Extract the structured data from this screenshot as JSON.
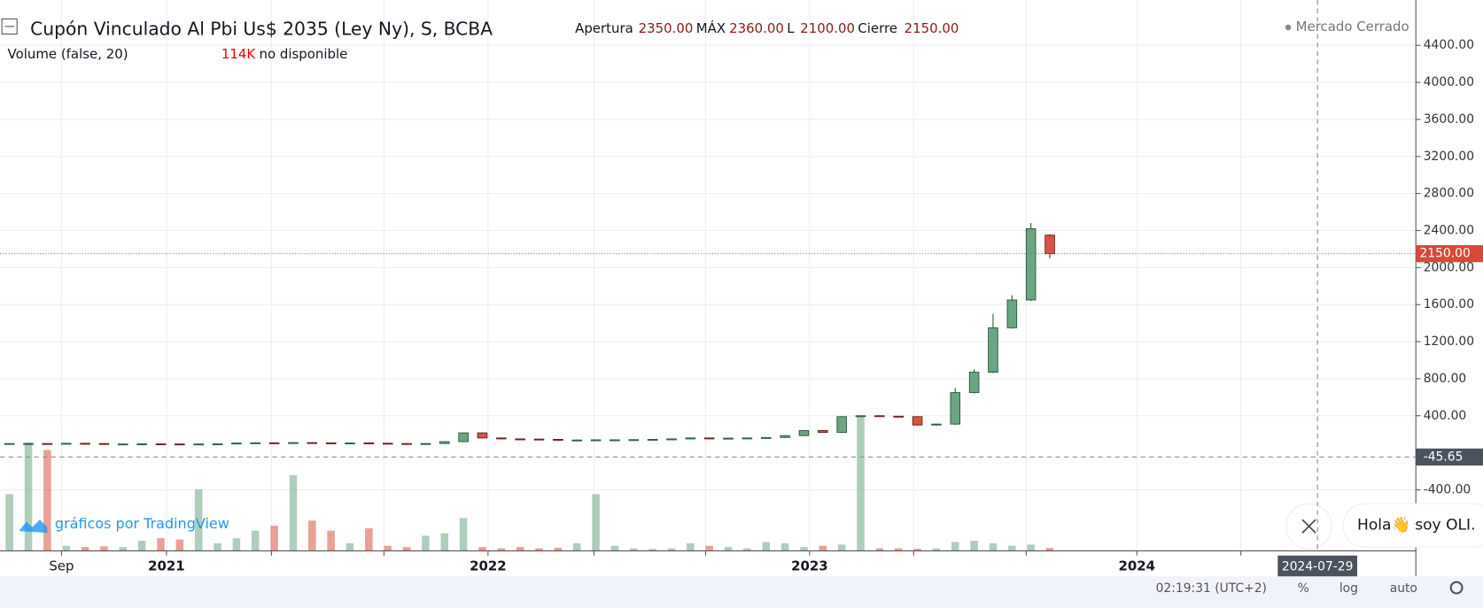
{
  "chart_data": {
    "type": "candlestick",
    "title": "Cupón Vinculado Al Pbi Us$ 2035 (Ley Ny), S, BCBA",
    "header": {
      "open_label": "Apertura",
      "open": "2350.00",
      "high_label": "MÁX",
      "high": "2360.00",
      "low_label": "L",
      "low": "2100.00",
      "close_label": "Cierre",
      "close": "2150.00"
    },
    "status": "Mercado Cerrado",
    "open": [
      95,
      100,
      100,
      98,
      102,
      100,
      95,
      95,
      96,
      95,
      94,
      95,
      96,
      105,
      108,
      106,
      110,
      107,
      104,
      106,
      103,
      100,
      98,
      100,
      120,
      215,
      160,
      150,
      148,
      145,
      135,
      138,
      140,
      140,
      142,
      145,
      150,
      160,
      155,
      158,
      160,
      165,
      185,
      240,
      220,
      390,
      400,
      395,
      390,
      300,
      310,
      650,
      870,
      1350,
      1650,
      2350
    ],
    "high": [
      105,
      105,
      105,
      107,
      107,
      105,
      100,
      101,
      101,
      100,
      100,
      101,
      110,
      113,
      113,
      115,
      115,
      112,
      111,
      111,
      108,
      105,
      105,
      125,
      220,
      220,
      165,
      155,
      153,
      150,
      143,
      145,
      145,
      147,
      150,
      155,
      165,
      165,
      163,
      165,
      170,
      190,
      245,
      245,
      395,
      405,
      405,
      400,
      395,
      315,
      700,
      900,
      1500,
      1700,
      2480,
      2360
    ],
    "low": [
      90,
      95,
      93,
      93,
      95,
      90,
      90,
      90,
      90,
      89,
      89,
      90,
      91,
      100,
      101,
      101,
      102,
      99,
      99,
      98,
      95,
      93,
      93,
      95,
      115,
      155,
      145,
      143,
      140,
      130,
      130,
      133,
      135,
      135,
      137,
      140,
      145,
      150,
      150,
      153,
      155,
      160,
      180,
      215,
      215,
      385,
      390,
      385,
      295,
      295,
      300,
      640,
      860,
      1340,
      1640,
      2100
    ],
    "close": [
      100,
      100,
      98,
      102,
      100,
      95,
      95,
      96,
      95,
      94,
      95,
      96,
      105,
      108,
      106,
      110,
      107,
      104,
      106,
      103,
      100,
      98,
      100,
      120,
      215,
      160,
      150,
      148,
      145,
      135,
      138,
      140,
      140,
      142,
      145,
      150,
      160,
      155,
      158,
      160,
      165,
      185,
      240,
      220,
      390,
      400,
      395,
      390,
      300,
      310,
      650,
      870,
      1350,
      1650,
      2420,
      2150
    ],
    "up_color": "#6ba583",
    "down_color": "#d75442",
    "ylim": [
      -1059,
      4808
    ],
    "yticks": [
      {
        "value": -400,
        "label": "-400.00"
      },
      {
        "value": 400,
        "label": "400.00"
      },
      {
        "value": 800,
        "label": "800.00"
      },
      {
        "value": 1200,
        "label": "1200.00"
      },
      {
        "value": 1600,
        "label": "1600.00"
      },
      {
        "value": 2000,
        "label": "2000.00"
      },
      {
        "value": 2400,
        "label": "2400.00"
      },
      {
        "value": 2800,
        "label": "2800.00"
      },
      {
        "value": 3200,
        "label": "3200.00"
      },
      {
        "value": 3600,
        "label": "3600.00"
      },
      {
        "value": 4000,
        "label": "4000.00"
      },
      {
        "value": 4400,
        "label": "4400.00"
      }
    ],
    "grid": true,
    "last_price": {
      "value": 2150,
      "label": "2150.00"
    },
    "crosshair": {
      "value": -45.65,
      "label": "-45.65",
      "date": "2024-07-29"
    },
    "xtick_labels": [
      "Sep",
      "2021",
      "2022",
      "2023",
      "2024"
    ],
    "volume": {
      "title": "Volume (false, 20)",
      "last": "114K",
      "status": "no disponible",
      "ylim": [
        0,
        6000
      ],
      "values": [
        2250,
        4300,
        4000,
        200,
        150,
        180,
        150,
        400,
        500,
        450,
        2440,
        300,
        500,
        800,
        1000,
        3000,
        1200,
        800,
        300,
        900,
        200,
        150,
        600,
        700,
        1300,
        150,
        100,
        150,
        100,
        120,
        300,
        2250,
        200,
        100,
        80,
        100,
        300,
        200,
        150,
        100,
        350,
        300,
        150,
        200,
        250,
        5360,
        100,
        100,
        80,
        100,
        350,
        400,
        300,
        200,
        250,
        114
      ]
    }
  },
  "ui": {
    "branding": "gráficos por TradingView",
    "time": "02:19:31 (UTC+2)",
    "buttons": [
      "%",
      "log",
      "auto"
    ],
    "chat": "Hola👋 soy OLI."
  }
}
